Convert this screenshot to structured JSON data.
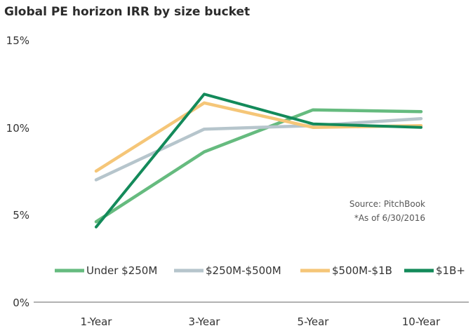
{
  "chart_data": {
    "type": "line",
    "title": "Global PE horizon IRR by size bucket",
    "categories": [
      "1-Year",
      "3-Year",
      "5-Year",
      "10-Year"
    ],
    "y_tick_labels": [
      "0%",
      "5%",
      "10%",
      "15%"
    ],
    "ylim": [
      0,
      15
    ],
    "grid": false,
    "legend_position": "bottom",
    "series": [
      {
        "name": "Under $250M",
        "color": "#66bb7f",
        "values": [
          4.6,
          8.6,
          11.0,
          10.9
        ]
      },
      {
        "name": "$250M-$500M",
        "color": "#b6c5cc",
        "values": [
          7.0,
          9.9,
          10.1,
          10.5
        ]
      },
      {
        "name": "$500M-$1B",
        "color": "#f5c678",
        "values": [
          7.5,
          11.4,
          10.0,
          10.1
        ]
      },
      {
        "name": "$1B+",
        "color": "#138a5a",
        "values": [
          4.3,
          11.9,
          10.2,
          10.0
        ]
      }
    ],
    "source_note": "Source: PitchBook",
    "asof_note": "*As of 6/30/2016"
  }
}
